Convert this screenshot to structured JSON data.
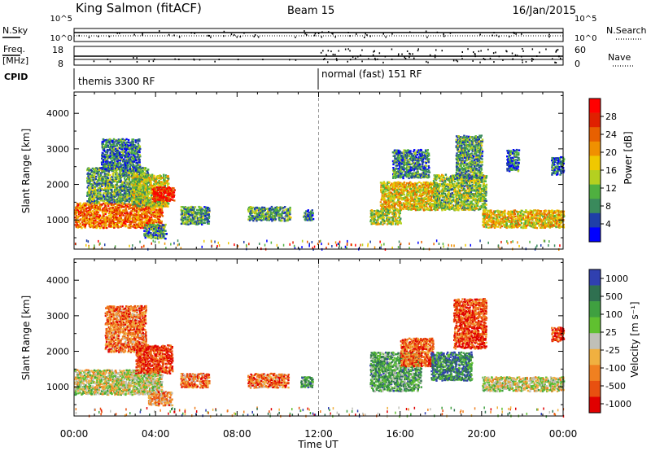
{
  "header": {
    "station": "King Salmon (fitACF)",
    "beam": "Beam 15",
    "date": "16/Jan/2015"
  },
  "aux": {
    "nsky_label": "N.Sky",
    "nsearch_label": "N.Search",
    "freq_label": "Freq.",
    "freq_unit": "[MHz]",
    "nave_label": "Nave",
    "cpid_label": "CPID",
    "noise_ticks": [
      "10^5",
      "10^0"
    ],
    "freq_ticks": [
      "18",
      "8"
    ],
    "nave_ticks": [
      "60",
      "0"
    ],
    "noise_right_ticks": [
      "10^5",
      "10^0"
    ],
    "cpid_segments": [
      {
        "start_hour": 0,
        "label": "themis 3300 RF"
      },
      {
        "start_hour": 12,
        "label": "normal (fast) 151 RF"
      }
    ]
  },
  "chart_data": [
    {
      "type": "heatmap",
      "name": "power",
      "xlabel": "",
      "ylabel": "Slant Range [km]",
      "xlim": [
        0,
        24
      ],
      "ylim": [
        180,
        4600
      ],
      "yticks": [
        1000,
        2000,
        3000,
        4000
      ],
      "colorbar_label": "Power [dB]",
      "colorbar_ticks": [
        "4",
        "8",
        "12",
        "16",
        "20",
        "24",
        "28"
      ],
      "colors": [
        "#0000ff",
        "#1f3fa8",
        "#3a8a5c",
        "#4fb040",
        "#b4d020",
        "#f0c800",
        "#f09000",
        "#e86000",
        "#e02000",
        "#ff0000"
      ],
      "regions": [
        {
          "t0": 0.0,
          "t1": 4.3,
          "r0": 800,
          "r1": 1500,
          "v": 0.72
        },
        {
          "t0": 0.6,
          "t1": 3.6,
          "r0": 1500,
          "r1": 2500,
          "v": 0.32
        },
        {
          "t0": 1.3,
          "t1": 3.2,
          "r0": 2400,
          "r1": 3300,
          "v": 0.22
        },
        {
          "t0": 2.8,
          "t1": 4.6,
          "r0": 1400,
          "r1": 2300,
          "v": 0.45
        },
        {
          "t0": 3.8,
          "t1": 4.9,
          "r0": 1550,
          "r1": 1950,
          "v": 0.92
        },
        {
          "t0": 3.4,
          "t1": 4.5,
          "r0": 500,
          "r1": 900,
          "v": 0.28
        },
        {
          "t0": 5.2,
          "t1": 6.6,
          "r0": 900,
          "r1": 1400,
          "v": 0.3
        },
        {
          "t0": 8.5,
          "t1": 10.6,
          "r0": 1000,
          "r1": 1400,
          "v": 0.3
        },
        {
          "t0": 11.2,
          "t1": 11.7,
          "r0": 1000,
          "r1": 1300,
          "v": 0.22
        },
        {
          "t0": 15.0,
          "t1": 17.8,
          "r0": 1300,
          "r1": 2100,
          "v": 0.55
        },
        {
          "t0": 15.6,
          "t1": 17.4,
          "r0": 2200,
          "r1": 3000,
          "v": 0.25
        },
        {
          "t0": 17.6,
          "t1": 20.2,
          "r0": 1300,
          "r1": 2300,
          "v": 0.4
        },
        {
          "t0": 18.7,
          "t1": 20.0,
          "r0": 2200,
          "r1": 3400,
          "v": 0.3
        },
        {
          "t0": 20.0,
          "t1": 24.0,
          "r0": 800,
          "r1": 1300,
          "v": 0.55
        },
        {
          "t0": 21.2,
          "t1": 21.8,
          "r0": 2400,
          "r1": 3000,
          "v": 0.2
        },
        {
          "t0": 23.4,
          "t1": 24.0,
          "r0": 2300,
          "r1": 2800,
          "v": 0.2
        },
        {
          "t0": 14.5,
          "t1": 16.0,
          "r0": 900,
          "r1": 1300,
          "v": 0.45
        }
      ]
    },
    {
      "type": "heatmap",
      "name": "velocity",
      "xlabel": "Time UT",
      "ylabel": "Slant Range [km]",
      "xlim": [
        0,
        24
      ],
      "ylim": [
        180,
        4600
      ],
      "yticks": [
        1000,
        2000,
        3000,
        4000
      ],
      "xticks": [
        "00:00",
        "04:00",
        "08:00",
        "12:00",
        "16:00",
        "20:00",
        "00:00"
      ],
      "colorbar_label": "Velocity [m s⁻¹]",
      "colorbar_ticks": [
        "1000",
        "500",
        "100",
        "25",
        "-25",
        "-100",
        "-500",
        "-1000"
      ],
      "colors": [
        "#3040b0",
        "#2f7050",
        "#3fa040",
        "#60c030",
        "#c0c0b8",
        "#f0b040",
        "#f08020",
        "#e85010",
        "#e00000"
      ],
      "regions": [
        {
          "t0": 0.0,
          "t1": 4.3,
          "r0": 800,
          "r1": 1500,
          "v": 0.5
        },
        {
          "t0": 1.5,
          "t1": 3.5,
          "r0": 2000,
          "r1": 3300,
          "v": 0.75
        },
        {
          "t0": 3.0,
          "t1": 4.8,
          "r0": 1400,
          "r1": 2200,
          "v": 0.88
        },
        {
          "t0": 3.6,
          "t1": 4.8,
          "r0": 500,
          "r1": 900,
          "v": 0.7
        },
        {
          "t0": 5.2,
          "t1": 6.6,
          "r0": 1000,
          "r1": 1400,
          "v": 0.75
        },
        {
          "t0": 8.5,
          "t1": 10.5,
          "r0": 1000,
          "r1": 1400,
          "v": 0.75
        },
        {
          "t0": 11.1,
          "t1": 11.7,
          "r0": 1000,
          "r1": 1300,
          "v": 0.25
        },
        {
          "t0": 14.5,
          "t1": 17.0,
          "r0": 900,
          "r1": 2000,
          "v": 0.3
        },
        {
          "t0": 16.0,
          "t1": 17.6,
          "r0": 1600,
          "r1": 2400,
          "v": 0.78
        },
        {
          "t0": 17.5,
          "t1": 19.5,
          "r0": 1200,
          "r1": 2000,
          "v": 0.2
        },
        {
          "t0": 18.6,
          "t1": 20.2,
          "r0": 2100,
          "r1": 3500,
          "v": 0.85
        },
        {
          "t0": 20.0,
          "t1": 24.0,
          "r0": 900,
          "r1": 1300,
          "v": 0.5
        },
        {
          "t0": 23.4,
          "t1": 24.0,
          "r0": 2300,
          "r1": 2700,
          "v": 0.85
        }
      ]
    }
  ]
}
